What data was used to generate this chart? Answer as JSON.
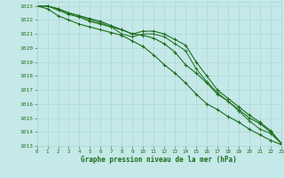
{
  "series": [
    {
      "x": [
        0,
        1,
        2,
        3,
        4,
        5,
        6,
        7,
        8,
        9,
        10,
        11,
        12,
        13,
        14,
        15,
        16,
        17,
        18,
        19,
        20,
        21,
        22,
        23
      ],
      "y": [
        1023.0,
        1022.8,
        1022.3,
        1022.0,
        1021.7,
        1021.5,
        1021.3,
        1021.1,
        1020.9,
        1020.5,
        1020.1,
        1019.5,
        1018.8,
        1018.2,
        1017.5,
        1016.7,
        1016.0,
        1015.6,
        1015.1,
        1014.7,
        1014.2,
        1013.8,
        1013.4,
        1013.1
      ],
      "color": "#1a6e1a",
      "lw": 0.8,
      "marker": "+"
    },
    {
      "x": [
        0,
        1,
        2,
        3,
        4,
        5,
        6,
        7,
        8,
        9,
        10,
        11,
        12,
        13,
        14,
        15,
        16,
        17,
        18,
        19,
        20,
        21,
        22,
        23
      ],
      "y": [
        1023.0,
        1023.0,
        1022.7,
        1022.4,
        1022.2,
        1021.9,
        1021.7,
        1021.5,
        1021.3,
        1021.0,
        1020.9,
        1020.7,
        1020.3,
        1019.7,
        1018.8,
        1018.2,
        1017.5,
        1016.7,
        1016.2,
        1015.6,
        1015.0,
        1014.6,
        1014.0,
        1013.2
      ],
      "color": "#1a6e1a",
      "lw": 0.8,
      "marker": "+"
    },
    {
      "x": [
        0,
        1,
        2,
        3,
        4,
        5,
        6,
        7,
        8,
        9,
        10,
        11,
        12,
        13,
        14,
        15,
        16,
        17,
        18,
        19,
        20,
        21,
        22,
        23
      ],
      "y": [
        1023.0,
        1023.0,
        1022.8,
        1022.5,
        1022.3,
        1022.0,
        1021.8,
        1021.5,
        1021.0,
        1020.8,
        1021.0,
        1021.0,
        1020.8,
        1020.3,
        1019.8,
        1018.5,
        1017.6,
        1016.8,
        1016.2,
        1015.5,
        1014.8,
        1014.2,
        1013.9,
        1013.2
      ],
      "color": "#2d7a2d",
      "lw": 0.8,
      "marker": "+"
    },
    {
      "x": [
        0,
        1,
        2,
        3,
        4,
        5,
        6,
        7,
        8,
        9,
        10,
        11,
        12,
        13,
        14,
        15,
        16,
        17,
        18,
        19,
        20,
        21,
        22,
        23
      ],
      "y": [
        1023.0,
        1023.0,
        1022.8,
        1022.5,
        1022.3,
        1022.1,
        1021.9,
        1021.6,
        1021.3,
        1021.0,
        1021.2,
        1021.2,
        1021.0,
        1020.6,
        1020.2,
        1019.0,
        1018.0,
        1017.0,
        1016.4,
        1015.8,
        1015.2,
        1014.7,
        1014.1,
        1013.2
      ],
      "color": "#1a6e1a",
      "lw": 0.8,
      "marker": "+"
    }
  ],
  "xlim": [
    0,
    23
  ],
  "ylim": [
    1013.0,
    1023.3
  ],
  "yticks": [
    1013,
    1014,
    1015,
    1016,
    1017,
    1018,
    1019,
    1020,
    1021,
    1022,
    1023
  ],
  "xticks": [
    0,
    1,
    2,
    3,
    4,
    5,
    6,
    7,
    8,
    9,
    10,
    11,
    12,
    13,
    14,
    15,
    16,
    17,
    18,
    19,
    20,
    21,
    22,
    23
  ],
  "xlabel": "Graphe pression niveau de la mer (hPa)",
  "bg_color": "#c5e8e8",
  "grid_color": "#aad4d4",
  "line_color": "#1a6e1a",
  "tick_color": "#1a6e1a"
}
